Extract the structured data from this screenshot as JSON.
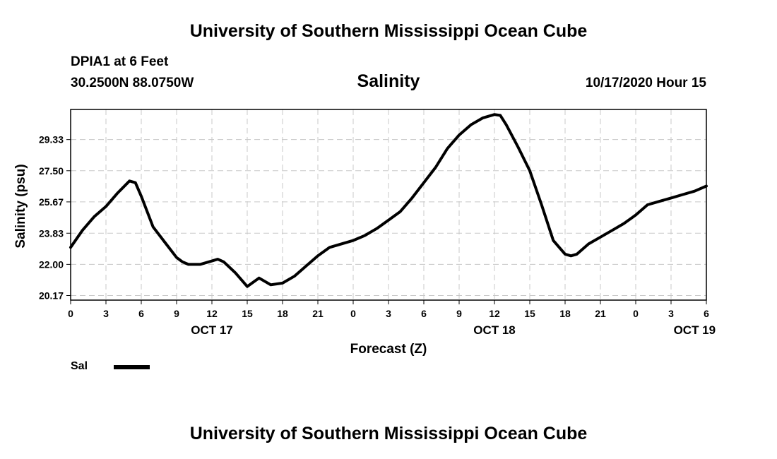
{
  "header": {
    "title": "University of Southern Mississippi Ocean Cube",
    "station": "DPIA1 at 6 Feet",
    "coordinates": "30.2500N 88.0750W",
    "chart_title": "Salinity",
    "run_time": "10/17/2020 Hour 15"
  },
  "footer": {
    "title": "University of Southern Mississippi Ocean Cube"
  },
  "legend": {
    "label": "Sal"
  },
  "chart_data": {
    "type": "line",
    "title": "Salinity",
    "xlabel": "Forecast (Z)",
    "ylabel": "Salinity (psu)",
    "xlim": [
      0,
      54
    ],
    "ylim": [
      19.9,
      31.1
    ],
    "x_tick_values": [
      0,
      3,
      6,
      9,
      12,
      15,
      18,
      21,
      24,
      27,
      30,
      33,
      36,
      39,
      42,
      45,
      48,
      51,
      54
    ],
    "x_tick_labels": [
      "0",
      "3",
      "6",
      "9",
      "12",
      "15",
      "18",
      "21",
      "0",
      "3",
      "6",
      "9",
      "12",
      "15",
      "18",
      "21",
      "0",
      "3",
      "6"
    ],
    "y_tick_values": [
      20.17,
      22.0,
      23.83,
      25.67,
      27.5,
      29.33
    ],
    "y_tick_labels": [
      "20.17",
      "22.00",
      "23.83",
      "25.67",
      "27.50",
      "29.33"
    ],
    "day_labels": [
      {
        "x": 12,
        "label": "OCT 17"
      },
      {
        "x": 36,
        "label": "OCT 18"
      },
      {
        "x": 53,
        "label": "OCT 19"
      }
    ],
    "grid": true,
    "series": [
      {
        "name": "Sal",
        "color": "#000000",
        "x": [
          0,
          1,
          2,
          3,
          4,
          5,
          5.5,
          6,
          7,
          8,
          9,
          9.5,
          10,
          11,
          12,
          12.5,
          13,
          14,
          15,
          16,
          17,
          18,
          19,
          20,
          21,
          22,
          23,
          24,
          25,
          26,
          27,
          28,
          29,
          30,
          31,
          32,
          33,
          34,
          35,
          36,
          36.5,
          37,
          38,
          39,
          40,
          41,
          42,
          42.5,
          43,
          44,
          45,
          46,
          47,
          48,
          49,
          50,
          51,
          52,
          53,
          54
        ],
        "values": [
          23.0,
          24.0,
          24.8,
          25.4,
          26.2,
          26.9,
          26.8,
          26.0,
          24.2,
          23.3,
          22.4,
          22.15,
          22.0,
          22.0,
          22.2,
          22.3,
          22.15,
          21.5,
          20.7,
          21.2,
          20.8,
          20.9,
          21.3,
          21.9,
          22.5,
          23.0,
          23.2,
          23.4,
          23.7,
          24.1,
          24.6,
          25.1,
          25.9,
          26.8,
          27.7,
          28.8,
          29.6,
          30.2,
          30.6,
          30.8,
          30.75,
          30.2,
          28.9,
          27.5,
          25.5,
          23.4,
          22.6,
          22.5,
          22.6,
          23.2,
          23.6,
          24.0,
          24.4,
          24.9,
          25.5,
          25.7,
          25.9,
          26.1,
          26.3,
          26.6
        ]
      }
    ]
  }
}
